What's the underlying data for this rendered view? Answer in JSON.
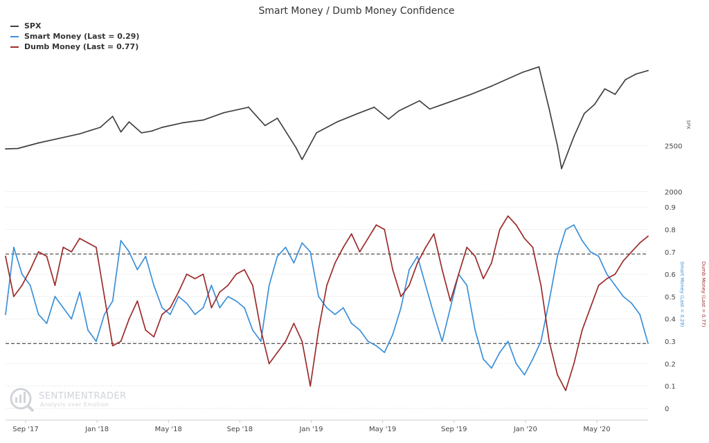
{
  "colors": {
    "spx": "#404040",
    "smart": "#3a8fd9",
    "dumb": "#9b2a2a",
    "grid": "#e4e4e4",
    "threshold": "#222222",
    "watermark": "#c8cdd3"
  },
  "watermark": {
    "brand": "SENTIMENTRADER",
    "tagline": "Analysis over Emotion"
  },
  "chart_data": {
    "type": "line",
    "title": "Smart Money / Dumb Money Confidence",
    "legend_position": "top-left",
    "legend": [
      "SPX",
      "Smart Money (Last = 0.29)",
      "Dumb Money (Last = 0.77)"
    ],
    "x_tick_labels": [
      "Sep '17",
      "Jan '18",
      "May '18",
      "Sep '18",
      "Jan '19",
      "May '19",
      "Sep '19",
      "Jan '20",
      "May '20"
    ],
    "grid": true,
    "spx_axis": {
      "label": "SPX",
      "ticks": [
        2000,
        2500
      ],
      "range": [
        1900,
        3500
      ]
    },
    "confidence_axis": {
      "left_label": "Smart Money (Last = 0.29)",
      "right_label": "Dumb Money (Last = 0.77)",
      "ticks": [
        0,
        0.1,
        0.2,
        0.3,
        0.4,
        0.5,
        0.6,
        0.7,
        0.8,
        0.9
      ],
      "range": [
        0,
        0.95
      ]
    },
    "thresholds": [
      0.69,
      0.29
    ],
    "x_range": [
      2017.54,
      2020.66
    ],
    "series": [
      {
        "name": "SPX",
        "x": [
          2017.54,
          2017.6,
          2017.7,
          2017.8,
          2017.9,
          2018.0,
          2018.06,
          2018.1,
          2018.14,
          2018.2,
          2018.25,
          2018.3,
          2018.4,
          2018.5,
          2018.6,
          2018.72,
          2018.8,
          2018.86,
          2018.95,
          2018.98,
          2019.05,
          2019.15,
          2019.25,
          2019.33,
          2019.4,
          2019.45,
          2019.55,
          2019.6,
          2019.7,
          2019.8,
          2019.9,
          2020.0,
          2020.05,
          2020.13,
          2020.18,
          2020.22,
          2020.24,
          2020.3,
          2020.35,
          2020.4,
          2020.45,
          2020.5,
          2020.55,
          2020.6,
          2020.66
        ],
        "values": [
          2465,
          2470,
          2530,
          2580,
          2630,
          2700,
          2820,
          2650,
          2760,
          2640,
          2660,
          2700,
          2750,
          2780,
          2860,
          2920,
          2720,
          2800,
          2480,
          2350,
          2640,
          2760,
          2850,
          2920,
          2790,
          2880,
          2990,
          2900,
          2980,
          3060,
          3150,
          3250,
          3300,
          3360,
          2900,
          2500,
          2250,
          2600,
          2850,
          2950,
          3120,
          3060,
          3220,
          3280,
          3320
        ]
      },
      {
        "name": "Smart Money (Last = 0.29)",
        "x": [
          2017.54,
          2017.58,
          2017.62,
          2017.66,
          2017.7,
          2017.74,
          2017.78,
          2017.82,
          2017.86,
          2017.9,
          2017.94,
          2017.98,
          2018.02,
          2018.06,
          2018.1,
          2018.14,
          2018.18,
          2018.22,
          2018.26,
          2018.3,
          2018.34,
          2018.38,
          2018.42,
          2018.46,
          2018.5,
          2018.54,
          2018.58,
          2018.62,
          2018.66,
          2018.7,
          2018.74,
          2018.78,
          2018.82,
          2018.86,
          2018.9,
          2018.94,
          2018.98,
          2019.02,
          2019.06,
          2019.1,
          2019.14,
          2019.18,
          2019.22,
          2019.26,
          2019.3,
          2019.34,
          2019.38,
          2019.42,
          2019.46,
          2019.5,
          2019.54,
          2019.58,
          2019.62,
          2019.66,
          2019.7,
          2019.74,
          2019.78,
          2019.82,
          2019.86,
          2019.9,
          2019.94,
          2019.98,
          2020.02,
          2020.06,
          2020.1,
          2020.14,
          2020.18,
          2020.22,
          2020.26,
          2020.3,
          2020.34,
          2020.38,
          2020.42,
          2020.46,
          2020.5,
          2020.54,
          2020.58,
          2020.62,
          2020.66
        ],
        "values": [
          0.42,
          0.72,
          0.6,
          0.55,
          0.42,
          0.38,
          0.5,
          0.45,
          0.4,
          0.52,
          0.35,
          0.3,
          0.42,
          0.48,
          0.75,
          0.7,
          0.62,
          0.68,
          0.55,
          0.45,
          0.42,
          0.5,
          0.47,
          0.42,
          0.45,
          0.55,
          0.45,
          0.5,
          0.48,
          0.45,
          0.35,
          0.3,
          0.55,
          0.68,
          0.72,
          0.65,
          0.74,
          0.7,
          0.5,
          0.45,
          0.42,
          0.45,
          0.38,
          0.35,
          0.3,
          0.28,
          0.25,
          0.33,
          0.45,
          0.62,
          0.68,
          0.55,
          0.42,
          0.3,
          0.45,
          0.6,
          0.55,
          0.35,
          0.22,
          0.18,
          0.25,
          0.3,
          0.2,
          0.15,
          0.22,
          0.3,
          0.48,
          0.68,
          0.8,
          0.82,
          0.75,
          0.7,
          0.68,
          0.6,
          0.55,
          0.5,
          0.47,
          0.42,
          0.29
        ]
      },
      {
        "name": "Dumb Money (Last = 0.77)",
        "x": [
          2017.54,
          2017.58,
          2017.62,
          2017.66,
          2017.7,
          2017.74,
          2017.78,
          2017.82,
          2017.86,
          2017.9,
          2017.94,
          2017.98,
          2018.02,
          2018.06,
          2018.1,
          2018.14,
          2018.18,
          2018.22,
          2018.26,
          2018.3,
          2018.34,
          2018.38,
          2018.42,
          2018.46,
          2018.5,
          2018.54,
          2018.58,
          2018.62,
          2018.66,
          2018.7,
          2018.74,
          2018.78,
          2018.82,
          2018.86,
          2018.9,
          2018.94,
          2018.98,
          2019.02,
          2019.06,
          2019.1,
          2019.14,
          2019.18,
          2019.22,
          2019.26,
          2019.3,
          2019.34,
          2019.38,
          2019.42,
          2019.46,
          2019.5,
          2019.54,
          2019.58,
          2019.62,
          2019.66,
          2019.7,
          2019.74,
          2019.78,
          2019.82,
          2019.86,
          2019.9,
          2019.94,
          2019.98,
          2020.02,
          2020.06,
          2020.1,
          2020.14,
          2020.18,
          2020.22,
          2020.26,
          2020.3,
          2020.34,
          2020.38,
          2020.42,
          2020.46,
          2020.5,
          2020.54,
          2020.58,
          2020.62,
          2020.66
        ],
        "values": [
          0.68,
          0.5,
          0.55,
          0.62,
          0.7,
          0.68,
          0.55,
          0.72,
          0.7,
          0.76,
          0.74,
          0.72,
          0.5,
          0.28,
          0.3,
          0.4,
          0.48,
          0.35,
          0.32,
          0.42,
          0.45,
          0.52,
          0.6,
          0.58,
          0.6,
          0.45,
          0.52,
          0.55,
          0.6,
          0.62,
          0.55,
          0.35,
          0.2,
          0.25,
          0.3,
          0.38,
          0.3,
          0.1,
          0.35,
          0.55,
          0.65,
          0.72,
          0.78,
          0.7,
          0.76,
          0.82,
          0.8,
          0.62,
          0.5,
          0.55,
          0.65,
          0.72,
          0.78,
          0.62,
          0.48,
          0.6,
          0.72,
          0.68,
          0.58,
          0.65,
          0.8,
          0.86,
          0.82,
          0.76,
          0.72,
          0.55,
          0.3,
          0.15,
          0.08,
          0.2,
          0.35,
          0.45,
          0.55,
          0.58,
          0.6,
          0.66,
          0.7,
          0.74,
          0.77
        ]
      }
    ]
  }
}
